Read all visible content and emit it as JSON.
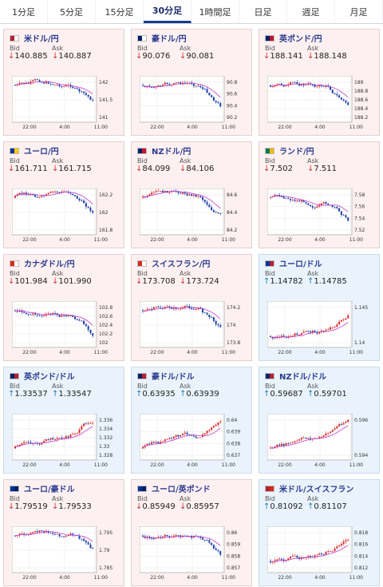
{
  "tabs": [
    "1分足",
    "5分足",
    "15分足",
    "30分足",
    "1時間足",
    "日足",
    "週足",
    "月足"
  ],
  "active_tab": 3,
  "bid_label": "Bid",
  "ask_label": "Ask",
  "xticks": [
    "22:00",
    "4:00",
    "11:00"
  ],
  "cards": [
    {
      "pair": "米ドル/円",
      "dir": "down",
      "bid": "140.885",
      "ask": "140.887",
      "yticks": [
        "142",
        "141.5",
        "141"
      ],
      "flag": [
        "#b22234",
        "#ffffff"
      ]
    },
    {
      "pair": "豪ドル/円",
      "dir": "down",
      "bid": "90.076",
      "ask": "90.081",
      "yticks": [
        "90.8",
        "90.6",
        "90.4",
        "90.2"
      ],
      "flag": [
        "#012169",
        "#ffffff"
      ]
    },
    {
      "pair": "英ポンド/円",
      "dir": "down",
      "bid": "188.141",
      "ask": "188.148",
      "yticks": [
        "189",
        "188.8",
        "188.6",
        "188.4",
        "188.2"
      ],
      "flag": [
        "#012169",
        "#c8102e"
      ]
    },
    {
      "pair": "ユーロ/円",
      "dir": "down",
      "bid": "161.711",
      "ask": "161.715",
      "yticks": [
        "162.2",
        "162",
        "161.8"
      ],
      "flag": [
        "#003399",
        "#ffcc00"
      ]
    },
    {
      "pair": "NZドル/円",
      "dir": "down",
      "bid": "84.099",
      "ask": "84.106",
      "yticks": [
        "84.6",
        "84.4",
        "84.2"
      ],
      "flag": [
        "#012169",
        "#cc142b"
      ]
    },
    {
      "pair": "ランド/円",
      "dir": "down",
      "bid": "7.502",
      "ask": "7.511",
      "yticks": [
        "7.58",
        "7.56",
        "7.54",
        "7.52"
      ],
      "flag": [
        "#007a4d",
        "#ffb612"
      ]
    },
    {
      "pair": "カナダドル/円",
      "dir": "down",
      "bid": "101.984",
      "ask": "101.990",
      "yticks": [
        "102.8",
        "102.6",
        "102.4",
        "102.2",
        "102"
      ],
      "flag": [
        "#d52b1e",
        "#ffffff"
      ]
    },
    {
      "pair": "スイスフラン/円",
      "dir": "down",
      "bid": "173.708",
      "ask": "173.724",
      "yticks": [
        "174.2",
        "174",
        "173.8"
      ],
      "flag": [
        "#d52b1e",
        "#ffffff"
      ]
    },
    {
      "pair": "ユーロ/ドル",
      "dir": "up",
      "bid": "1.14782",
      "ask": "1.14785",
      "yticks": [
        "1.145",
        "1.14"
      ],
      "flag": [
        "#003399",
        "#b22234"
      ]
    },
    {
      "pair": "英ポンド/ドル",
      "dir": "up",
      "bid": "1.33537",
      "ask": "1.33547",
      "yticks": [
        "1.336",
        "1.334",
        "1.332",
        "1.33",
        "1.328"
      ],
      "flag": [
        "#012169",
        "#b22234"
      ]
    },
    {
      "pair": "豪ドル/ドル",
      "dir": "up",
      "bid": "0.63935",
      "ask": "0.63939",
      "yticks": [
        "0.64",
        "0.639",
        "0.638",
        "0.637"
      ],
      "flag": [
        "#012169",
        "#b22234"
      ]
    },
    {
      "pair": "NZドル/ドル",
      "dir": "up",
      "bid": "0.59687",
      "ask": "0.59701",
      "yticks": [
        "0.596",
        "0.594"
      ],
      "flag": [
        "#012169",
        "#b22234"
      ]
    },
    {
      "pair": "ユーロ/豪ドル",
      "dir": "down",
      "bid": "1.79519",
      "ask": "1.79533",
      "yticks": [
        "1.795",
        "1.79",
        "1.785"
      ],
      "flag": [
        "#003399",
        "#012169"
      ]
    },
    {
      "pair": "ユーロ/英ポンド",
      "dir": "down",
      "bid": "0.85949",
      "ask": "0.85957",
      "yticks": [
        "0.86",
        "0.859",
        "0.858",
        "0.857"
      ],
      "flag": [
        "#003399",
        "#012169"
      ]
    },
    {
      "pair": "米ドル/スイスフラン",
      "dir": "up",
      "bid": "0.81092",
      "ask": "0.81107",
      "yticks": [
        "0.818",
        "0.816",
        "0.814",
        "0.812"
      ],
      "flag": [
        "#b22234",
        "#d52b1e"
      ]
    }
  ]
}
